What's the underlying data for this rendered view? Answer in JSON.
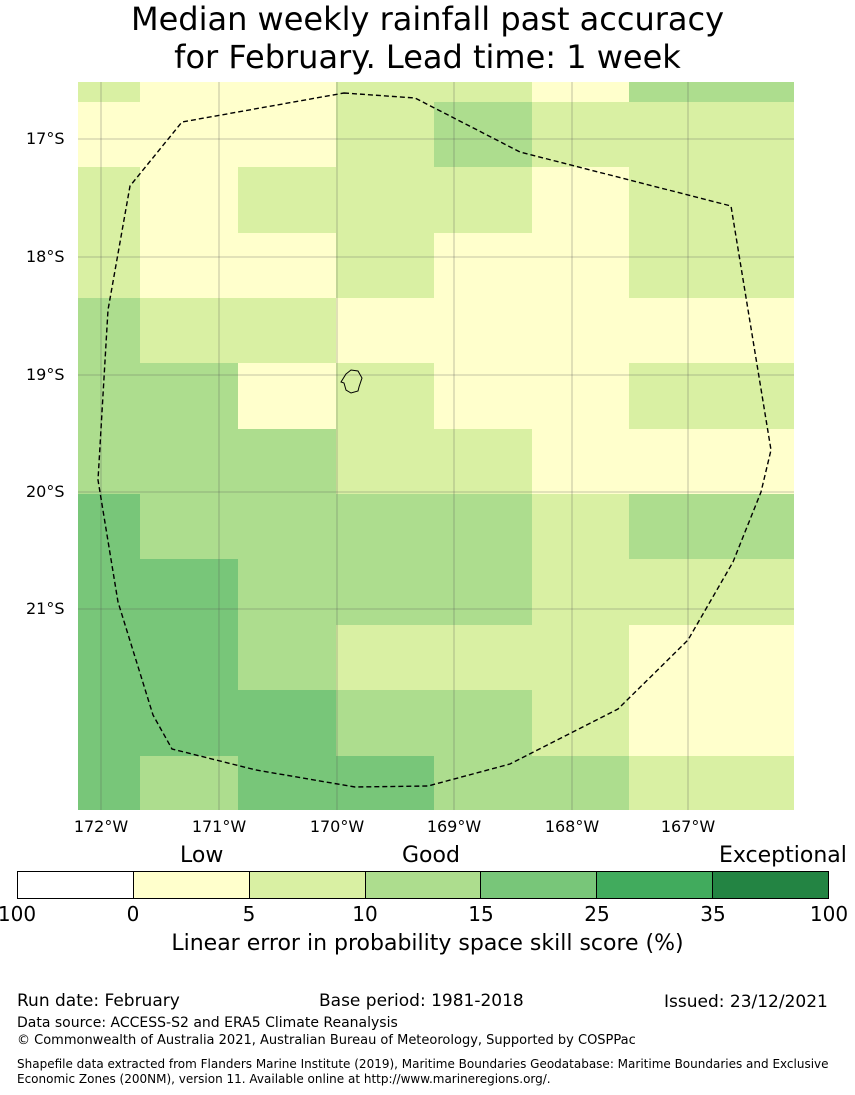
{
  "title": {
    "line1": "Median weekly rainfall past accuracy",
    "line2": "for February. Lead time: 1 week"
  },
  "map": {
    "lat_labels": [
      "17°S",
      "18°S",
      "19°S",
      "20°S",
      "21°S"
    ],
    "lon_labels": [
      "172°W",
      "171°W",
      "170°W",
      "169°W",
      "168°W",
      "167°W"
    ],
    "category_colors": {
      "0-5": "#ffffcc",
      "5-10": "#d9f0a3",
      "10-15": "#addd8e",
      "15-25": "#78c679",
      "25-35": "#41ab5d",
      "35-100": "#238443"
    },
    "grid_columns": 7,
    "grid_rows": 12,
    "grid_classes": [
      [
        2,
        1,
        1,
        2,
        2,
        1,
        3
      ],
      [
        1,
        1,
        1,
        2,
        3,
        2,
        2
      ],
      [
        2,
        1,
        2,
        2,
        2,
        1,
        2
      ],
      [
        2,
        1,
        1,
        2,
        1,
        1,
        2
      ],
      [
        3,
        2,
        2,
        1,
        1,
        1,
        1
      ],
      [
        3,
        3,
        1,
        2,
        1,
        1,
        2
      ],
      [
        3,
        3,
        3,
        2,
        2,
        1,
        1
      ],
      [
        4,
        3,
        3,
        3,
        3,
        2,
        3
      ],
      [
        4,
        4,
        3,
        3,
        3,
        2,
        2
      ],
      [
        4,
        4,
        3,
        2,
        2,
        2,
        1
      ],
      [
        4,
        4,
        4,
        3,
        3,
        2,
        1
      ],
      [
        4,
        3,
        4,
        4,
        3,
        3,
        2
      ]
    ]
  },
  "legend": {
    "categories": [
      {
        "label": "Low"
      },
      {
        "label": "Good"
      },
      {
        "label": "Exceptional"
      }
    ],
    "segment_colors": [
      "#ffffff",
      "#ffffcc",
      "#d9f0a3",
      "#addd8e",
      "#78c679",
      "#41ab5d",
      "#238443"
    ],
    "ticks": [
      "100",
      "0",
      "5",
      "10",
      "15",
      "25",
      "35",
      "100"
    ],
    "title": "Linear error in probability space skill score (%)"
  },
  "footer": {
    "run_date": "Run date: February",
    "base_period": "Base period: 1981-2018",
    "issued": "Issued: 23/12/2021",
    "data_source": "Data source: ACCESS-S2 and ERA5 Climate Reanalysis",
    "copyright": "© Commonwealth of Australia 2021, Australian Bureau of Meteorology, Supported by COSPPac",
    "shapefile_note": "Shapefile data extracted from Flanders Marine Institute (2019), Maritime Boundaries Geodatabase: Maritime Boundaries and Exclusive Economic Zones (200NM), version 11. Available online at http://www.marineregions.org/."
  }
}
